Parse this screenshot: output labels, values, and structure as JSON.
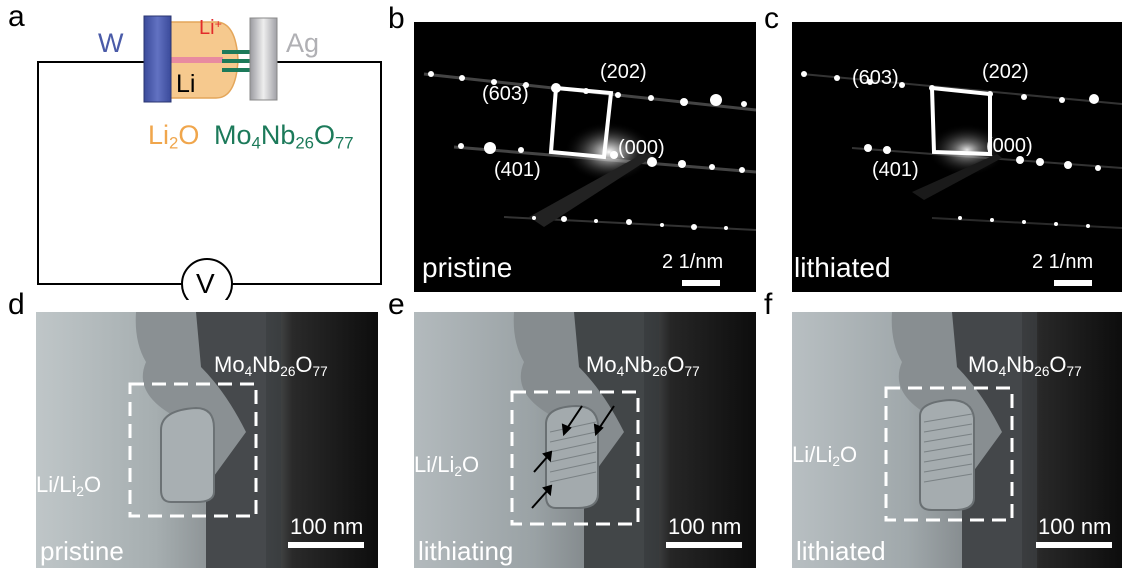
{
  "panel_labels": {
    "a": "a",
    "b": "b",
    "c": "c",
    "d": "d",
    "e": "e",
    "f": "f"
  },
  "schematic": {
    "w": "W",
    "ag": "Ag",
    "li_ion": "Li",
    "li_ion_charge": "+",
    "li": "Li",
    "li2o_main": "Li",
    "li2o_sub": "2",
    "li2o_o": "O",
    "mo": "Mo",
    "mo_sub": "4",
    "nb": "Nb",
    "nb_sub": "26",
    "o": "O",
    "o_sub": "77",
    "voltmeter": "V"
  },
  "diffraction": {
    "idx_603": "(603)",
    "idx_202": "(202)",
    "idx_000": "(000)",
    "idx_401": "(401)",
    "scale": "2 1/nm",
    "state_b": "pristine",
    "state_c": "lithiated"
  },
  "tem": {
    "mo": "Mo",
    "mo_sub": "4",
    "nb": "Nb",
    "nb_sub": "26",
    "o": "O",
    "o_sub": "77",
    "lili2o_a": "Li/Li",
    "lili2o_sub": "2",
    "lili2o_o": "O",
    "scale": "100 nm",
    "state_d": "pristine",
    "state_e": "lithiating",
    "state_f": "lithiated"
  },
  "colors": {
    "tungsten": "#4a5ba8",
    "silver": "#b8b8bc",
    "li2o": "#f0a64c",
    "li_ion": "#e22b2b",
    "mno": "#1c7a5a"
  }
}
